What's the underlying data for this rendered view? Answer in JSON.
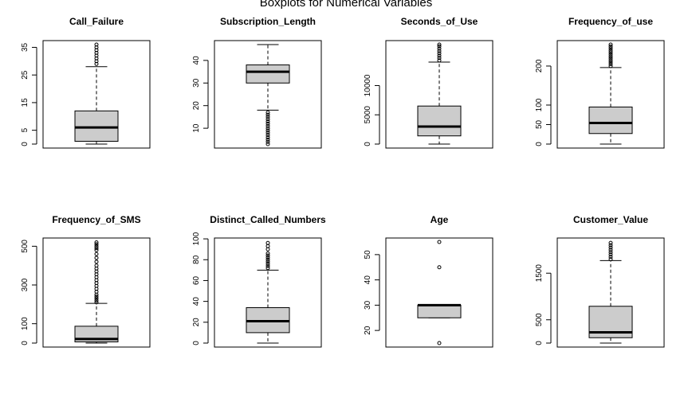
{
  "title": "Boxplots for Numerical Variables",
  "colors": {
    "box_fill": "#cccccc",
    "stroke": "#000000",
    "background": "#ffffff"
  },
  "chart_data": [
    {
      "type": "boxplot",
      "title": "Call_Failure",
      "ylim": [
        0,
        36
      ],
      "ticks": [
        0,
        5,
        15,
        25,
        35
      ],
      "box": {
        "whisker_low": 0,
        "q1": 1,
        "median": 6,
        "q3": 12,
        "whisker_high": 28
      },
      "outliers": [
        29,
        30,
        31,
        32,
        33,
        34,
        35,
        36
      ]
    },
    {
      "type": "boxplot",
      "title": "Subscription_Length",
      "ylim": [
        3,
        47
      ],
      "ticks": [
        10,
        20,
        30,
        40
      ],
      "box": {
        "whisker_low": 18,
        "q1": 30,
        "median": 35,
        "q3": 38,
        "whisker_high": 47
      },
      "outliers": [
        3,
        4,
        5,
        6,
        7,
        8,
        9,
        10,
        11,
        12,
        13,
        14,
        15,
        16,
        17
      ]
    },
    {
      "type": "boxplot",
      "title": "Seconds_of_Use",
      "ylim": [
        0,
        17000
      ],
      "ticks": [
        0,
        5000,
        10000
      ],
      "box": {
        "whisker_low": 0,
        "q1": 1400,
        "median": 3000,
        "q3": 6500,
        "whisker_high": 14000
      },
      "outliers": [
        14300,
        14700,
        15100,
        15500,
        15900,
        16300,
        16700,
        17000
      ]
    },
    {
      "type": "boxplot",
      "title": "Frequency_of_use",
      "ylim": [
        0,
        255
      ],
      "ticks": [
        0,
        50,
        100,
        200
      ],
      "box": {
        "whisker_low": 0,
        "q1": 27,
        "median": 54,
        "q3": 95,
        "whisker_high": 196
      },
      "outliers": [
        200,
        205,
        210,
        215,
        220,
        225,
        230,
        235,
        240,
        245,
        250,
        255
      ]
    },
    {
      "type": "boxplot",
      "title": "Frequency_of_SMS",
      "ylim": [
        0,
        522
      ],
      "ticks": [
        0,
        100,
        300,
        500
      ],
      "box": {
        "whisker_low": 0,
        "q1": 6,
        "median": 21,
        "q3": 87,
        "whisker_high": 205
      },
      "outliers": [
        210,
        220,
        230,
        240,
        250,
        265,
        280,
        295,
        310,
        325,
        340,
        355,
        370,
        385,
        400,
        420,
        440,
        460,
        480,
        490,
        500,
        510,
        520
      ]
    },
    {
      "type": "boxplot",
      "title": "Distinct_Called_Numbers",
      "ylim": [
        0,
        97
      ],
      "ticks": [
        0,
        20,
        40,
        60,
        80,
        100
      ],
      "box": {
        "whisker_low": 0,
        "q1": 10,
        "median": 21,
        "q3": 34,
        "whisker_high": 70
      },
      "outliers": [
        72,
        74,
        76,
        78,
        80,
        82,
        84,
        86,
        90,
        93,
        96
      ]
    },
    {
      "type": "boxplot",
      "title": "Age",
      "ylim": [
        15,
        55
      ],
      "ticks": [
        20,
        30,
        40,
        50
      ],
      "box": {
        "whisker_low": 25,
        "q1": 25,
        "median": 30,
        "q3": 30,
        "whisker_high": 30
      },
      "outliers": [
        15,
        45,
        55
      ]
    },
    {
      "type": "boxplot",
      "title": "Customer_Value",
      "ylim": [
        0,
        2170
      ],
      "ticks": [
        0,
        500,
        1500
      ],
      "box": {
        "whisker_low": 0,
        "q1": 115,
        "median": 230,
        "q3": 790,
        "whisker_high": 1770
      },
      "outliers": [
        1800,
        1850,
        1900,
        1950,
        2000,
        2050,
        2100,
        2150
      ]
    }
  ]
}
